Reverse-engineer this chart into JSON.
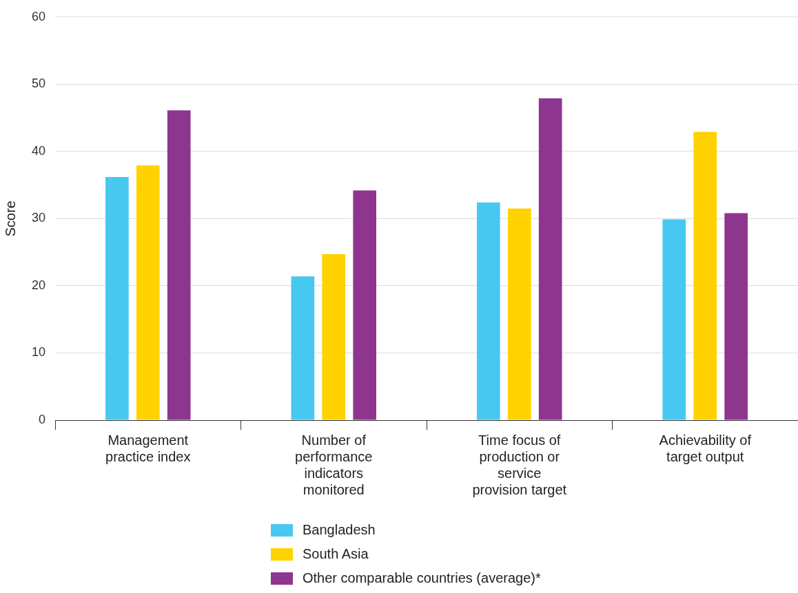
{
  "chart_data": {
    "type": "bar",
    "ylabel": "Score",
    "categories": [
      "Management practice index",
      "Number of performance indicators monitored",
      "Time focus of production or service provision target",
      "Achievability of target output"
    ],
    "series": [
      {
        "name": "Bangladesh",
        "color": "#48c8f0",
        "values": [
          36.2,
          21.4,
          32.4,
          29.9
        ]
      },
      {
        "name": "South Asia",
        "color": "#ffd200",
        "values": [
          37.9,
          24.7,
          31.5,
          42.9
        ]
      },
      {
        "name": "Other comparable countries (average)*",
        "color": "#8e3590",
        "values": [
          46.1,
          34.2,
          47.9,
          30.8
        ]
      }
    ],
    "ylim": [
      0,
      60
    ],
    "yticks": [
      0,
      10,
      20,
      30,
      40,
      50,
      60
    ],
    "grid": "y",
    "legend": "bottom"
  }
}
